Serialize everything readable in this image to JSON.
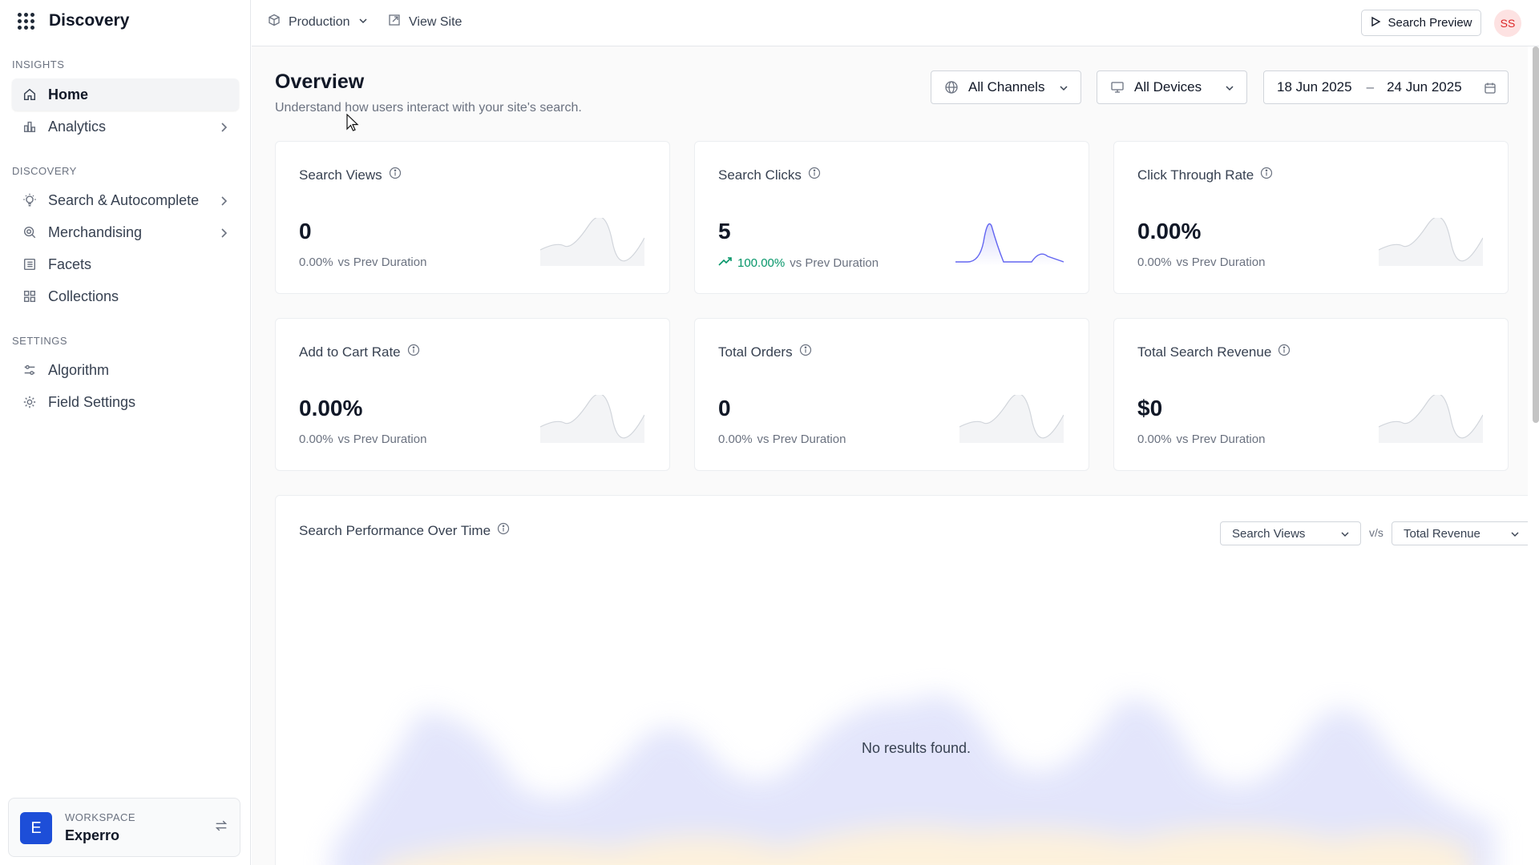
{
  "app": {
    "title": "Discovery"
  },
  "sidebar": {
    "sections": {
      "insights": "INSIGHTS",
      "discovery": "DISCOVERY",
      "settings": "SETTINGS"
    },
    "items": [
      {
        "label": "Home",
        "icon": "home-icon",
        "active": true
      },
      {
        "label": "Analytics",
        "icon": "bar-chart-icon",
        "has_children": true
      },
      {
        "label": "Search & Autocomplete",
        "icon": "lightbulb-icon",
        "has_children": true
      },
      {
        "label": "Merchandising",
        "icon": "search-badge-icon",
        "has_children": true
      },
      {
        "label": "Facets",
        "icon": "list-icon"
      },
      {
        "label": "Collections",
        "icon": "grid-icon"
      },
      {
        "label": "Algorithm",
        "icon": "sliders-icon"
      },
      {
        "label": "Field Settings",
        "icon": "gear-icon"
      }
    ],
    "workspace": {
      "label": "WORKSPACE",
      "name": "Experro",
      "avatar_letter": "E"
    }
  },
  "topbar": {
    "environment": "Production",
    "view_site": "View Site",
    "search_preview": "Search Preview",
    "user_initials": "SS"
  },
  "overview": {
    "title": "Overview",
    "subtitle": "Understand how users interact with your site's search.",
    "filters": {
      "channels": "All Channels",
      "devices": "All Devices",
      "date_from": "18 Jun 2025",
      "date_separator": "–",
      "date_to": "24 Jun 2025"
    },
    "delta_suffix": "vs Prev Duration",
    "cards": [
      {
        "title": "Search Views",
        "value": "0",
        "delta": "0.00%",
        "trend": "flat"
      },
      {
        "title": "Search Clicks",
        "value": "5",
        "delta": "100.00%",
        "trend": "up"
      },
      {
        "title": "Click Through Rate",
        "value": "0.00%",
        "delta": "0.00%",
        "trend": "flat"
      },
      {
        "title": "Add to Cart Rate",
        "value": "0.00%",
        "delta": "0.00%",
        "trend": "flat"
      },
      {
        "title": "Total Orders",
        "value": "0",
        "delta": "0.00%",
        "trend": "flat"
      },
      {
        "title": "Total Search Revenue",
        "value": "$0",
        "delta": "0.00%",
        "trend": "flat"
      }
    ]
  },
  "performance": {
    "title": "Search Performance Over Time",
    "metric_a": "Search Views",
    "vs": "v/s",
    "metric_b": "Total Revenue",
    "empty": "No results found."
  },
  "colors": {
    "accent": "#6366f1",
    "positive": "#059669",
    "workspace_avatar": "#1d4ed8"
  }
}
